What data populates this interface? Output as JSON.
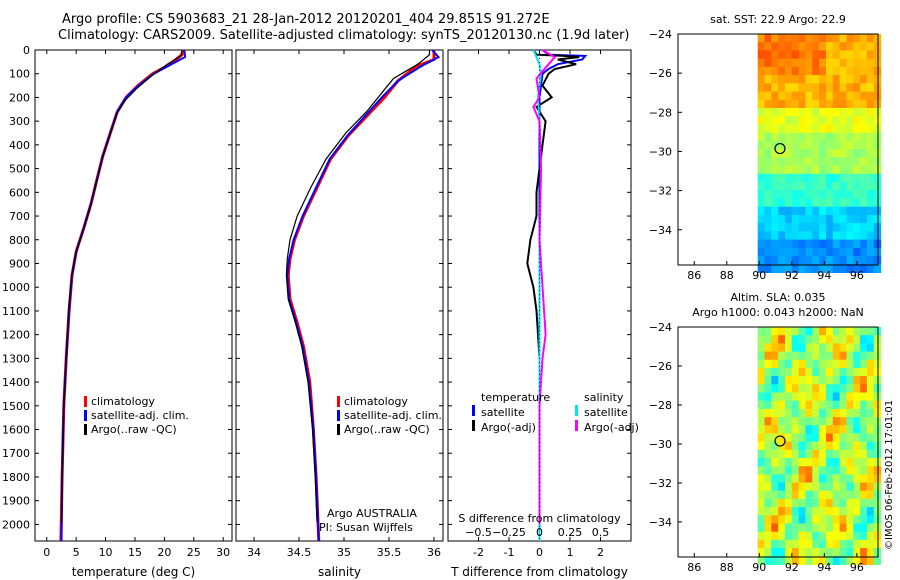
{
  "titles": {
    "line1": "Argo profile: CS 5903683_21 28-Jan-2012 20120201_404 29.851S 91.272E",
    "line2": "Climatology: CARS2009. Satellite-adjusted climatology: synTS_20120130.nc (1.9d later)"
  },
  "watermark": "©IMOS 06-Feb-2012 17:01:01",
  "colors": {
    "climatology": "#ff0000",
    "satellite": "#0000ff",
    "argo": "#000000",
    "sat_sal": "#00e5ee",
    "argo_sal": "#ff00ff"
  },
  "chart_data": [
    {
      "id": "temperature",
      "type": "line",
      "xlabel": "temperature (deg C)",
      "ylabel": "",
      "xlim": [
        -2,
        31.5
      ],
      "ylim": [
        2070,
        0
      ],
      "xticks": [
        0,
        5,
        10,
        15,
        20,
        25,
        30
      ],
      "yticks": [
        0,
        100,
        200,
        300,
        400,
        500,
        600,
        700,
        800,
        900,
        1000,
        1100,
        1200,
        1300,
        1400,
        1500,
        1600,
        1700,
        1800,
        1900,
        2000
      ],
      "legend": [
        "climatology",
        "satellite-adj. clim.",
        "Argo(..raw -QC)"
      ],
      "series": [
        {
          "name": "climatology",
          "color": "#ff0000",
          "points": [
            [
              23.2,
              0
            ],
            [
              23,
              20
            ],
            [
              21,
              60
            ],
            [
              18,
              100
            ],
            [
              15.5,
              150
            ],
            [
              13.5,
              200
            ],
            [
              12,
              260
            ],
            [
              10.8,
              350
            ],
            [
              9.5,
              450
            ],
            [
              8.5,
              550
            ],
            [
              7.5,
              650
            ],
            [
              6.3,
              750
            ],
            [
              5,
              850
            ],
            [
              4.3,
              950
            ],
            [
              3.8,
              1100
            ],
            [
              3.3,
              1300
            ],
            [
              2.9,
              1500
            ],
            [
              2.6,
              1800
            ],
            [
              2.4,
              2070
            ]
          ]
        },
        {
          "name": "satellite-adj. clim.",
          "color": "#0000ff",
          "points": [
            [
              23.4,
              0
            ],
            [
              23.5,
              30
            ],
            [
              21.2,
              60
            ],
            [
              18.2,
              100
            ],
            [
              15.6,
              150
            ],
            [
              13.5,
              200
            ],
            [
              12,
              260
            ],
            [
              10.8,
              350
            ],
            [
              9.5,
              450
            ],
            [
              8.5,
              550
            ],
            [
              7.5,
              650
            ],
            [
              6.3,
              750
            ],
            [
              5,
              850
            ],
            [
              4.3,
              950
            ],
            [
              3.8,
              1100
            ],
            [
              3.3,
              1300
            ],
            [
              2.9,
              1500
            ],
            [
              2.6,
              1800
            ],
            [
              2.5,
              2070
            ]
          ]
        },
        {
          "name": "Argo(..raw -QC)",
          "color": "#000000",
          "points": [
            [
              23,
              0
            ],
            [
              22.8,
              25
            ],
            [
              20.5,
              60
            ],
            [
              17.8,
              110
            ],
            [
              15.4,
              160
            ],
            [
              13.4,
              210
            ],
            [
              11.9,
              270
            ],
            [
              10.7,
              360
            ],
            [
              9.4,
              460
            ],
            [
              8.4,
              560
            ],
            [
              7.4,
              660
            ],
            [
              6.2,
              760
            ],
            [
              4.9,
              860
            ],
            [
              4.2,
              960
            ],
            [
              3.7,
              1100
            ],
            [
              3.3,
              1300
            ],
            [
              2.9,
              1500
            ],
            [
              2.6,
              1800
            ],
            [
              2.5,
              1990
            ]
          ]
        }
      ]
    },
    {
      "id": "salinity",
      "type": "line",
      "xlabel": "salinity",
      "xlim": [
        33.8,
        36.1
      ],
      "ylim": [
        2070,
        0
      ],
      "xticks": [
        34,
        34.5,
        35,
        35.5,
        36
      ],
      "legend": [
        "climatology",
        "satellite-adj. clim.",
        "Argo(..raw -QC)"
      ],
      "annotations": [
        "Argo AUSTRALIA",
        "PI: Susan Wijffels"
      ],
      "series": [
        {
          "name": "climatology",
          "color": "#ff0000",
          "points": [
            [
              36,
              0
            ],
            [
              36,
              40
            ],
            [
              35.8,
              70
            ],
            [
              35.6,
              130
            ],
            [
              35.45,
              200
            ],
            [
              35.25,
              280
            ],
            [
              35.05,
              360
            ],
            [
              34.85,
              460
            ],
            [
              34.7,
              580
            ],
            [
              34.55,
              700
            ],
            [
              34.45,
              800
            ],
            [
              34.4,
              880
            ],
            [
              34.38,
              950
            ],
            [
              34.4,
              1050
            ],
            [
              34.48,
              1150
            ],
            [
              34.55,
              1250
            ],
            [
              34.62,
              1400
            ],
            [
              34.66,
              1600
            ],
            [
              34.69,
              1800
            ],
            [
              34.72,
              2070
            ]
          ]
        },
        {
          "name": "satellite-adj. clim.",
          "color": "#0000ff",
          "points": [
            [
              35.98,
              0
            ],
            [
              36.05,
              30
            ],
            [
              35.85,
              70
            ],
            [
              35.6,
              130
            ],
            [
              35.42,
              200
            ],
            [
              35.23,
              280
            ],
            [
              35.04,
              360
            ],
            [
              34.84,
              460
            ],
            [
              34.69,
              580
            ],
            [
              34.54,
              700
            ],
            [
              34.44,
              800
            ],
            [
              34.39,
              880
            ],
            [
              34.37,
              950
            ],
            [
              34.39,
              1050
            ],
            [
              34.47,
              1150
            ],
            [
              34.54,
              1250
            ],
            [
              34.61,
              1400
            ],
            [
              34.66,
              1600
            ],
            [
              34.69,
              1800
            ],
            [
              34.72,
              2070
            ]
          ]
        },
        {
          "name": "Argo(..raw -QC)",
          "color": "#000000",
          "points": [
            [
              35.95,
              0
            ],
            [
              35.95,
              20
            ],
            [
              35.82,
              60
            ],
            [
              35.55,
              120
            ],
            [
              35.4,
              190
            ],
            [
              35.25,
              260
            ],
            [
              35.02,
              350
            ],
            [
              34.8,
              460
            ],
            [
              34.63,
              580
            ],
            [
              34.48,
              700
            ],
            [
              34.4,
              800
            ],
            [
              34.37,
              880
            ],
            [
              34.36,
              950
            ],
            [
              34.38,
              1050
            ],
            [
              34.46,
              1150
            ],
            [
              34.53,
              1250
            ],
            [
              34.6,
              1400
            ],
            [
              34.65,
              1600
            ],
            [
              34.68,
              1800
            ],
            [
              34.7,
              1990
            ]
          ]
        }
      ]
    },
    {
      "id": "differences",
      "type": "line",
      "xlabel": "T difference from climatology",
      "xlabel2": "S difference from climatology",
      "xlim": [
        -3,
        3
      ],
      "xticks": [
        -2,
        -1,
        0,
        1,
        2
      ],
      "xticks2": [
        -0.5,
        -0.25,
        0,
        0.25,
        0.5
      ],
      "xticks2_labels": [
        "−0.5",
        "−0.25",
        "0",
        "0.25",
        "0.5"
      ],
      "ylim": [
        2070,
        0
      ],
      "legend_headers": [
        "temperature",
        "salinity"
      ],
      "legend": [
        "satellite",
        "Argo(-adj)",
        "satellite",
        "Argo(-adj)"
      ],
      "series": [
        {
          "name": "T satellite",
          "color": "#0000ff",
          "points": [
            [
              0.1,
              0
            ],
            [
              0.3,
              20
            ],
            [
              1.5,
              25
            ],
            [
              1.4,
              40
            ],
            [
              0.6,
              60
            ],
            [
              0.3,
              80
            ],
            [
              0.1,
              100
            ],
            [
              0,
              200
            ],
            [
              0,
              400
            ],
            [
              0,
              600
            ],
            [
              0,
              1000
            ],
            [
              0,
              1400
            ],
            [
              0,
              2070
            ]
          ]
        },
        {
          "name": "T Argo(-adj)",
          "color": "#000000",
          "points": [
            [
              -0.2,
              0
            ],
            [
              -0.1,
              20
            ],
            [
              0.8,
              25
            ],
            [
              1.3,
              30
            ],
            [
              0.6,
              40
            ],
            [
              1.2,
              60
            ],
            [
              0.5,
              80
            ],
            [
              0.3,
              100
            ],
            [
              0.1,
              150
            ],
            [
              0.4,
              200
            ],
            [
              -0.1,
              240
            ],
            [
              0.2,
              300
            ],
            [
              0.1,
              400
            ],
            [
              0,
              500
            ],
            [
              -0.1,
              600
            ],
            [
              -0.1,
              700
            ],
            [
              -0.3,
              800
            ],
            [
              -0.4,
              900
            ],
            [
              -0.2,
              1000
            ],
            [
              -0.1,
              1100
            ],
            [
              0,
              1300
            ],
            [
              0,
              1500
            ],
            [
              0,
              1800
            ],
            [
              0,
              1990
            ]
          ]
        },
        {
          "name": "S satellite",
          "color": "#00e5ee",
          "points": [
            [
              -0.2,
              0
            ],
            [
              -0.1,
              30
            ],
            [
              0,
              60
            ],
            [
              0.05,
              100
            ],
            [
              -0.05,
              200
            ],
            [
              0,
              300
            ],
            [
              0.05,
              500
            ],
            [
              0,
              800
            ],
            [
              0,
              1200
            ],
            [
              0,
              1600
            ],
            [
              0,
              2070
            ]
          ]
        },
        {
          "name": "S Argo(-adj)",
          "color": "#ff00ff",
          "points": [
            [
              0.1,
              0
            ],
            [
              0.5,
              30
            ],
            [
              0.3,
              60
            ],
            [
              0.1,
              90
            ],
            [
              -0.1,
              120
            ],
            [
              0,
              200
            ],
            [
              -0.2,
              240
            ],
            [
              0,
              300
            ],
            [
              0.05,
              500
            ],
            [
              0,
              800
            ],
            [
              0.2,
              1200
            ],
            [
              0.1,
              1300
            ],
            [
              0,
              1500
            ],
            [
              0,
              2000
            ]
          ]
        }
      ]
    },
    {
      "id": "sst_map",
      "type": "heatmap",
      "title": "sat. SST: 22.9 Argo: 22.9",
      "xlim": [
        85,
        97.3
      ],
      "ylim": [
        -35.8,
        -24
      ],
      "xticks": [
        86,
        88,
        90,
        92,
        94,
        96
      ],
      "yticks": [
        -24,
        -26,
        -28,
        -30,
        -32,
        -34
      ],
      "marker": {
        "lon": 91.272,
        "lat": -29.851
      }
    },
    {
      "id": "sla_map",
      "type": "heatmap",
      "title": "Altim. SLA: 0.035",
      "subtitle": "Argo h1000: 0.043 h2000: NaN",
      "xlim": [
        85,
        97.3
      ],
      "ylim": [
        -35.8,
        -24
      ],
      "xticks": [
        86,
        88,
        90,
        92,
        94,
        96
      ],
      "yticks": [
        -24,
        -26,
        -28,
        -30,
        -32,
        -34
      ],
      "marker": {
        "lon": 91.272,
        "lat": -29.851
      }
    }
  ]
}
